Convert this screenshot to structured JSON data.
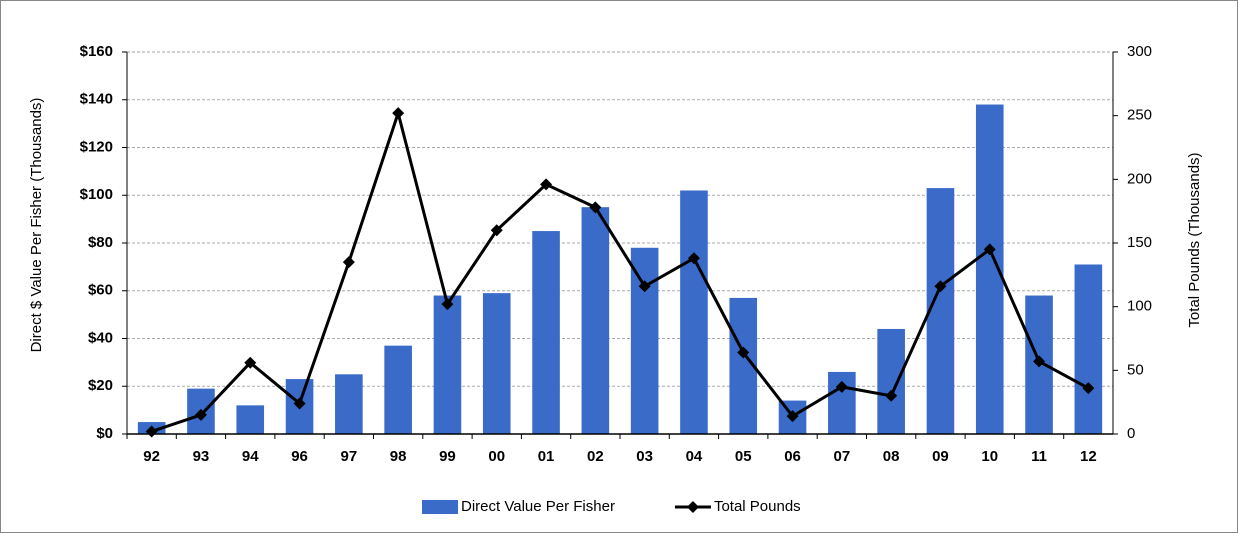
{
  "chart_data": {
    "type": "bar",
    "categories": [
      "92",
      "93",
      "94",
      "96",
      "97",
      "98",
      "99",
      "00",
      "01",
      "02",
      "03",
      "04",
      "05",
      "06",
      "07",
      "08",
      "09",
      "10",
      "11",
      "12"
    ],
    "y_label": "Direct  $ Value Per Fisher (Thousands)",
    "y2_label": "Total Pounds (Thousands)",
    "series": [
      {
        "name": "Direct Value Per Fisher",
        "type": "bar",
        "color": "#3a6bc8",
        "values": [
          5,
          19,
          12,
          23,
          25,
          37,
          58,
          59,
          85,
          95,
          78,
          102,
          57,
          14,
          26,
          44,
          103,
          138,
          58,
          71
        ]
      },
      {
        "name": "Total Pounds",
        "type": "line",
        "axis": "y2",
        "color": "#000000",
        "values": [
          2,
          15,
          56,
          24,
          135,
          252,
          102,
          160,
          196,
          178,
          116,
          138,
          64,
          14,
          37,
          30,
          116,
          145,
          57,
          36
        ]
      }
    ],
    "ylim": [
      0,
      160
    ],
    "yticks": [
      {
        "value": 0,
        "label": "$0"
      },
      {
        "value": 20,
        "label": "$20"
      },
      {
        "value": 40,
        "label": "$40"
      },
      {
        "value": 60,
        "label": "$60"
      },
      {
        "value": 80,
        "label": "$80"
      },
      {
        "value": 100,
        "label": "$100"
      },
      {
        "value": 120,
        "label": "$120"
      },
      {
        "value": 140,
        "label": "$140"
      },
      {
        "value": 160,
        "label": "$160"
      }
    ],
    "y2lim": [
      0,
      300
    ],
    "y2ticks": [
      0,
      50,
      100,
      150,
      200,
      250,
      300
    ],
    "grid": true,
    "legend": "bottom"
  }
}
